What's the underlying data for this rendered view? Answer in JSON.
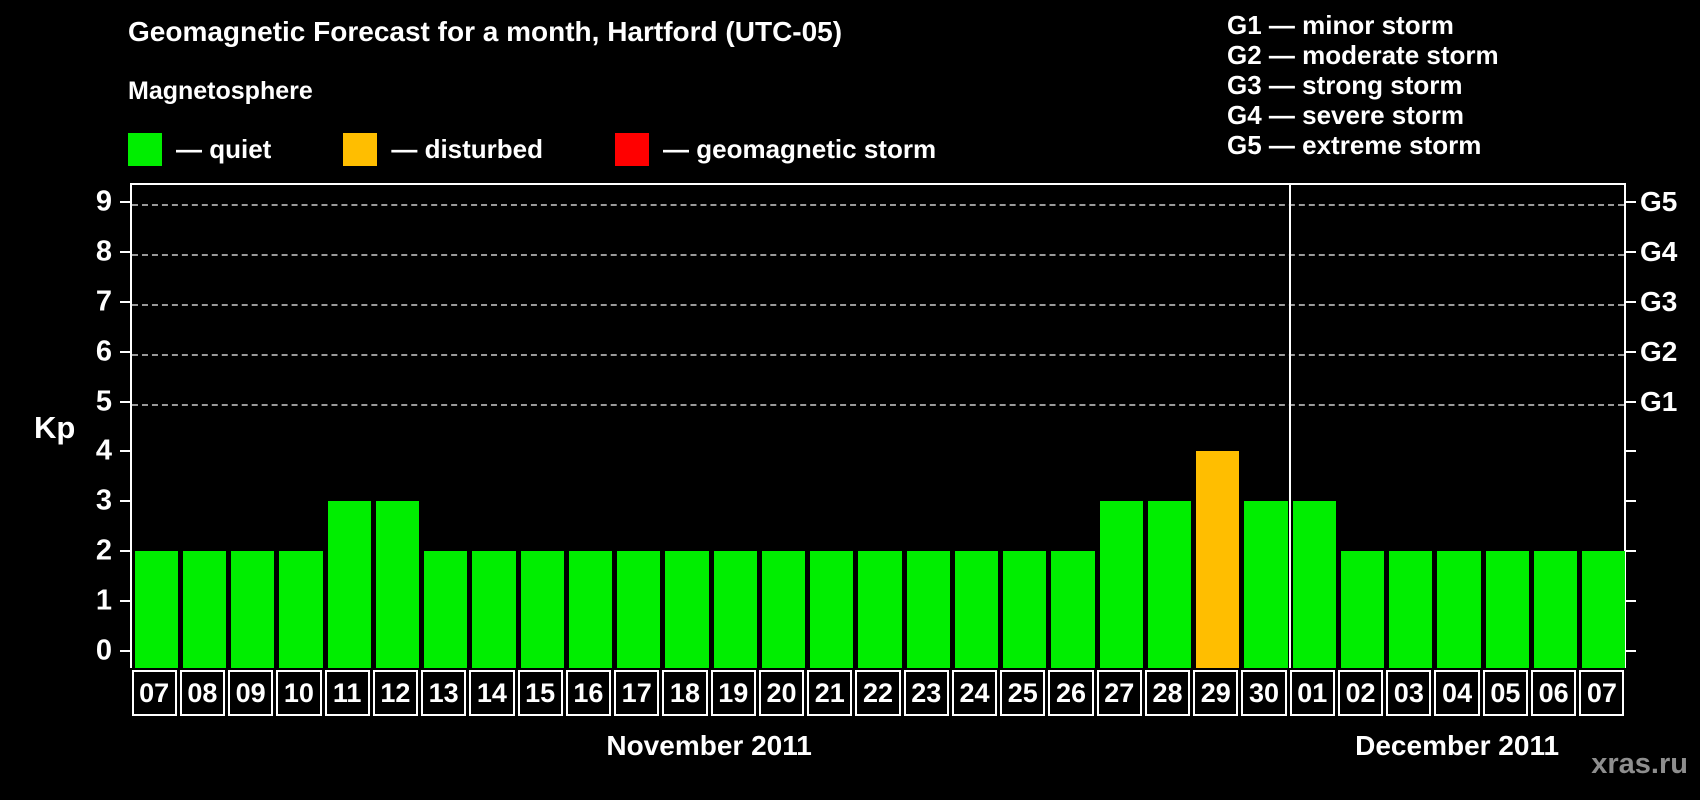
{
  "title": "Geomagnetic Forecast for a month, Hartford (UTC-05)",
  "subtitle": "Magnetosphere",
  "legend": {
    "items": [
      {
        "state": "quiet",
        "label": "— quiet",
        "color": "#00ee00"
      },
      {
        "state": "disturbed",
        "label": "— disturbed",
        "color": "#ffbe00"
      },
      {
        "state": "storm",
        "label": "— geomagnetic storm",
        "color": "#ff0000"
      }
    ]
  },
  "g_scale_legend": [
    "G1 — minor storm",
    "G2 — moderate storm",
    "G3 — strong storm",
    "G4 — severe storm",
    "G5 — extreme storm"
  ],
  "watermark": "xras.ru",
  "chart_data": {
    "type": "bar",
    "title": "Geomagnetic Forecast for a month, Hartford (UTC-05)",
    "ylabel": "Kp",
    "ylim": [
      -0.35,
      9.4
    ],
    "y_ticks": [
      0,
      1,
      2,
      3,
      4,
      5,
      6,
      7,
      8,
      9
    ],
    "gridlines_at": [
      5,
      6,
      7,
      8,
      9
    ],
    "grid_style": "horizontal dashed gray lines only at Kp 5–9",
    "legend_position": "top-left",
    "right_axis": [
      {
        "value": 5,
        "label": "G1"
      },
      {
        "value": 6,
        "label": "G2"
      },
      {
        "value": 7,
        "label": "G3"
      },
      {
        "value": 8,
        "label": "G4"
      },
      {
        "value": 9,
        "label": "G5"
      }
    ],
    "state_colors": {
      "quiet": "#00ee00",
      "disturbed": "#ffbe00",
      "storm": "#ff0000"
    },
    "months": [
      {
        "label": "November 2011",
        "bars": [
          {
            "day": "07",
            "kp": 2,
            "state": "quiet"
          },
          {
            "day": "08",
            "kp": 2,
            "state": "quiet"
          },
          {
            "day": "09",
            "kp": 2,
            "state": "quiet"
          },
          {
            "day": "10",
            "kp": 2,
            "state": "quiet"
          },
          {
            "day": "11",
            "kp": 3,
            "state": "quiet"
          },
          {
            "day": "12",
            "kp": 3,
            "state": "quiet"
          },
          {
            "day": "13",
            "kp": 2,
            "state": "quiet"
          },
          {
            "day": "14",
            "kp": 2,
            "state": "quiet"
          },
          {
            "day": "15",
            "kp": 2,
            "state": "quiet"
          },
          {
            "day": "16",
            "kp": 2,
            "state": "quiet"
          },
          {
            "day": "17",
            "kp": 2,
            "state": "quiet"
          },
          {
            "day": "18",
            "kp": 2,
            "state": "quiet"
          },
          {
            "day": "19",
            "kp": 2,
            "state": "quiet"
          },
          {
            "day": "20",
            "kp": 2,
            "state": "quiet"
          },
          {
            "day": "21",
            "kp": 2,
            "state": "quiet"
          },
          {
            "day": "22",
            "kp": 2,
            "state": "quiet"
          },
          {
            "day": "23",
            "kp": 2,
            "state": "quiet"
          },
          {
            "day": "24",
            "kp": 2,
            "state": "quiet"
          },
          {
            "day": "25",
            "kp": 2,
            "state": "quiet"
          },
          {
            "day": "26",
            "kp": 2,
            "state": "quiet"
          },
          {
            "day": "27",
            "kp": 3,
            "state": "quiet"
          },
          {
            "day": "28",
            "kp": 3,
            "state": "quiet"
          },
          {
            "day": "29",
            "kp": 4,
            "state": "disturbed"
          },
          {
            "day": "30",
            "kp": 3,
            "state": "quiet"
          }
        ]
      },
      {
        "label": "December 2011",
        "bars": [
          {
            "day": "01",
            "kp": 3,
            "state": "quiet"
          },
          {
            "day": "02",
            "kp": 2,
            "state": "quiet"
          },
          {
            "day": "03",
            "kp": 2,
            "state": "quiet"
          },
          {
            "day": "04",
            "kp": 2,
            "state": "quiet"
          },
          {
            "day": "05",
            "kp": 2,
            "state": "quiet"
          },
          {
            "day": "06",
            "kp": 2,
            "state": "quiet"
          },
          {
            "day": "07",
            "kp": 2,
            "state": "quiet"
          }
        ]
      }
    ]
  }
}
